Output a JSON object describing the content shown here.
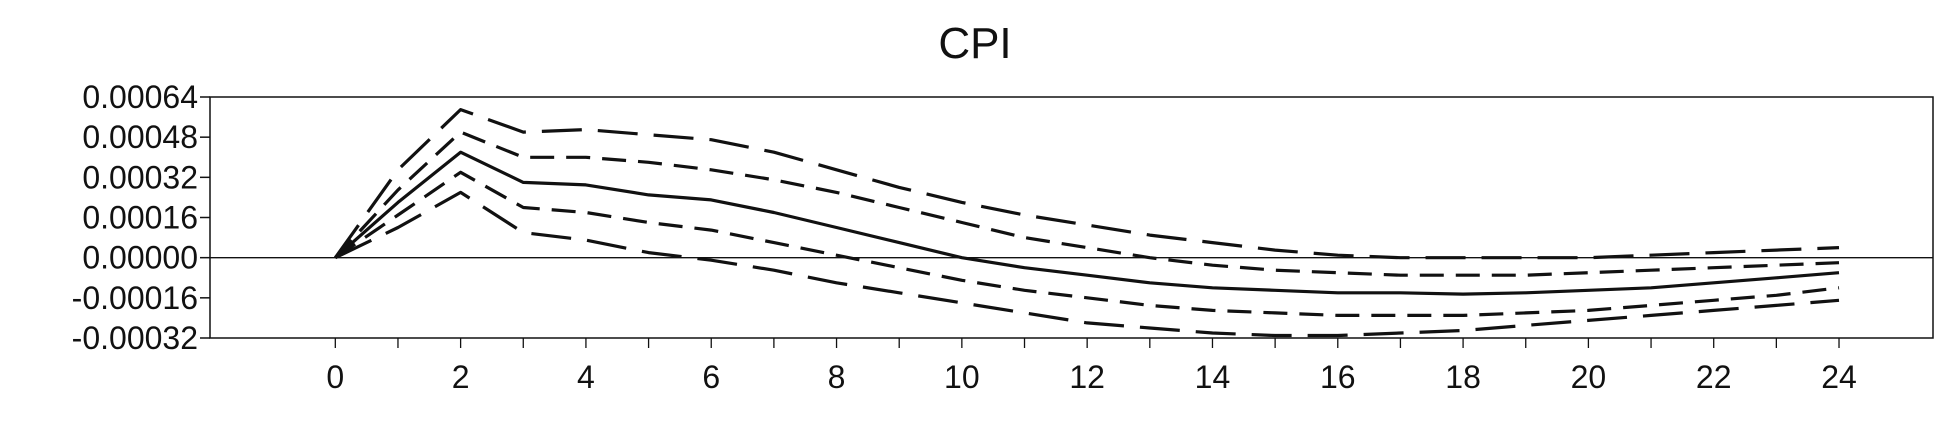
{
  "chart_data": {
    "type": "line",
    "title": "CPI",
    "xlabel": "",
    "ylabel": "",
    "x": [
      0,
      1,
      2,
      3,
      4,
      5,
      6,
      7,
      8,
      9,
      10,
      11,
      12,
      13,
      14,
      15,
      16,
      17,
      18,
      19,
      20,
      21,
      22,
      23,
      24
    ],
    "xlim": [
      -2,
      25.5
    ],
    "ylim": [
      -0.00032,
      0.00064
    ],
    "x_ticks": [
      0,
      2,
      4,
      6,
      8,
      10,
      12,
      14,
      16,
      18,
      20,
      22,
      24
    ],
    "x_tick_labels": [
      "0",
      "2",
      "4",
      "6",
      "8",
      "10",
      "12",
      "14",
      "16",
      "18",
      "20",
      "22",
      "24"
    ],
    "y_ticks": [
      0.00064,
      0.00048,
      0.00032,
      0.00016,
      0.0,
      -0.00016,
      -0.00032
    ],
    "y_tick_labels": [
      "0.00064",
      "0.00048",
      "0.00032",
      "0.00016",
      "0.00000",
      "-0.00016",
      "-0.00032"
    ],
    "grid": false,
    "legend": "none",
    "zero_line": true,
    "line_color": "#111111",
    "series": [
      {
        "style": "solid",
        "values": [
          0,
          0.00022,
          0.00042,
          0.0003,
          0.00029,
          0.00025,
          0.00023,
          0.00018,
          0.00012,
          6e-05,
          0.0,
          -4e-05,
          -7e-05,
          -0.0001,
          -0.00012,
          -0.00013,
          -0.00014,
          -0.00014,
          -0.000145,
          -0.00014,
          -0.00013,
          -0.00012,
          -0.0001,
          -8e-05,
          -6e-05
        ]
      },
      {
        "style": "short-dash",
        "values": [
          0,
          0.00027,
          0.0005,
          0.0004,
          0.0004,
          0.00038,
          0.00035,
          0.00031,
          0.00026,
          0.0002,
          0.00014,
          8e-05,
          4e-05,
          0.0,
          -3e-05,
          -5e-05,
          -6e-05,
          -7e-05,
          -7e-05,
          -7e-05,
          -6e-05,
          -5e-05,
          -4e-05,
          -3e-05,
          -2e-05
        ]
      },
      {
        "style": "short-dash",
        "values": [
          0,
          0.00017,
          0.00034,
          0.0002,
          0.00018,
          0.00014,
          0.00011,
          6e-05,
          1e-05,
          -4e-05,
          -9e-05,
          -0.00013,
          -0.00016,
          -0.00019,
          -0.00021,
          -0.00022,
          -0.00023,
          -0.00023,
          -0.00023,
          -0.00022,
          -0.00021,
          -0.00019,
          -0.00017,
          -0.00015,
          -0.00012
        ]
      },
      {
        "style": "long-dash",
        "values": [
          0,
          0.00035,
          0.00059,
          0.0005,
          0.00051,
          0.00049,
          0.00047,
          0.00042,
          0.00035,
          0.00028,
          0.00022,
          0.00017,
          0.00013,
          9e-05,
          6e-05,
          3e-05,
          1e-05,
          0.0,
          0.0,
          0.0,
          0.0,
          1e-05,
          2e-05,
          3e-05,
          4e-05
        ]
      },
      {
        "style": "long-dash",
        "values": [
          0,
          0.00012,
          0.00026,
          0.0001,
          7e-05,
          2e-05,
          -1e-05,
          -5e-05,
          -0.0001,
          -0.00014,
          -0.00018,
          -0.00022,
          -0.00026,
          -0.00028,
          -0.0003,
          -0.00031,
          -0.00031,
          -0.0003,
          -0.00029,
          -0.00027,
          -0.00025,
          -0.00023,
          -0.00021,
          -0.00019,
          -0.00017
        ]
      }
    ]
  }
}
